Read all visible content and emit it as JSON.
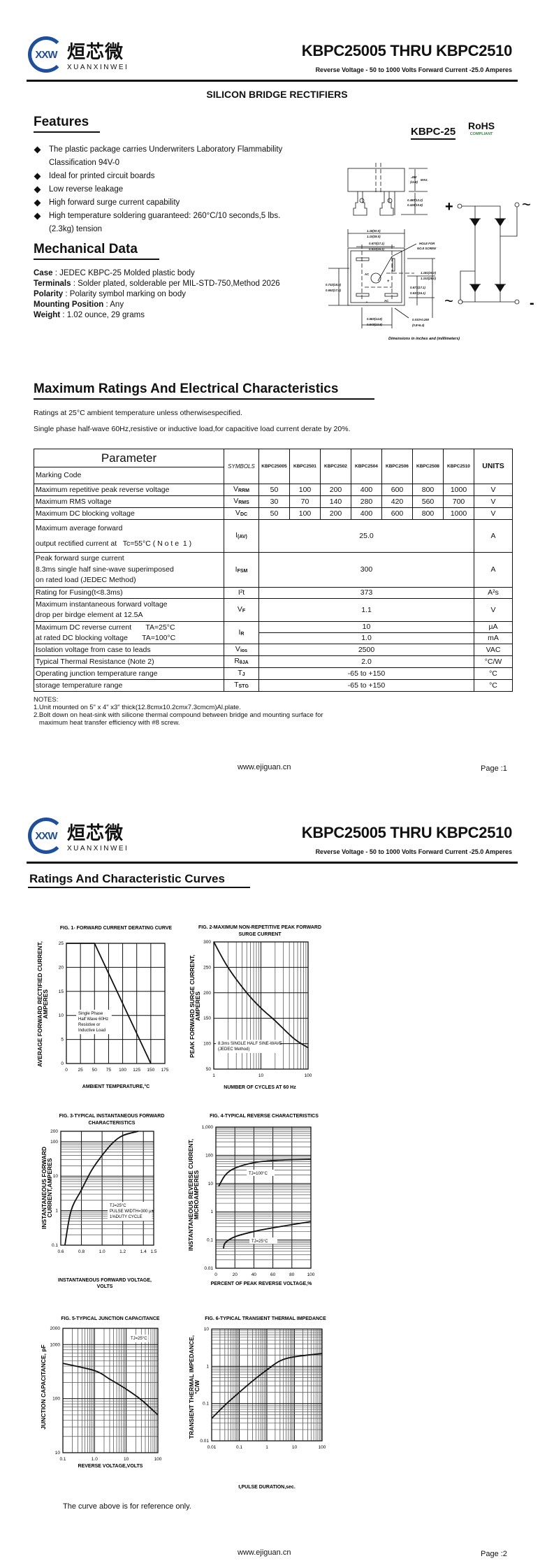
{
  "logo": {
    "mark": "XXW",
    "chinese": "烜芯微",
    "pinyin": "XUANXINWEI",
    "color": "#1d4f9c"
  },
  "header": {
    "title": "KBPC25005 THRU KBPC2510",
    "subtitle": "Reverse Voltage - 50 to 1000 Volts Forward Current -25.0 Amperes"
  },
  "page1": {
    "heading": "SILICON BRIDGE RECTIFIERS",
    "features": {
      "title": "Features",
      "items": [
        "The plastic package carries Underwriters Laboratory Flammability Classification 94V-0",
        "Ideal for printed circuit boards",
        "Low reverse leakage",
        "High forward surge current capability",
        "High temperature soldering guaranteed: 260°C/10 seconds,5 lbs. (2.3kg) tension"
      ]
    },
    "package": {
      "name": "KBPC-25",
      "rohs": "RoHS",
      "rohs_sub": "COMPLIANT",
      "rohs_color": "#2e8b3a",
      "dims": {
        "height": ".452",
        "height_mm": "(11.5)",
        "max": "MAX.",
        "lead1": "0.480(12.2)",
        "lead2": "0.425(10.8)",
        "w1": "1.18(30.0)",
        "w2": "1.10(28.0)",
        "t1": "0.673(17.1)",
        "t2": "0.633(16.1)",
        "hole1": "HOLE FOR",
        "hole2": "NO.8 SCREW",
        "h1": "1.181(30.0)",
        "h2": "1.102(28.0)",
        "r1": "0.673(17.1)",
        "r2": "0.633(16.1)",
        "l1": "0.732(18.6)",
        "l2": "0.692(17.6)",
        "b1": "0.583(14.8)",
        "b2": "0.543(13.8)",
        "p1": "0.033×0.250",
        "p2": "(0.8×6.4)",
        "ac": "AC",
        "plus": "+",
        "minus": "-"
      },
      "caption": "Dimensions in inches and (millimeters)",
      "circuit": {
        "plus": "+",
        "minus": "-",
        "ac": "~"
      }
    },
    "mechanical": {
      "title": "Mechanical Data",
      "items": [
        {
          "label": "Case",
          "text": ": JEDEC KBPC-25 Molded plastic body"
        },
        {
          "label": "Terminals",
          "text": ": Solder plated, solderable per MIL-STD-750,Method 2026"
        },
        {
          "label": "Polarity",
          "text": ": Polarity symbol  marking on body"
        },
        {
          "label": "Mounting Position",
          "text": ": Any"
        },
        {
          "label": "Weight",
          "text": ": 1.02 ounce, 29 grams"
        }
      ]
    },
    "ratings": {
      "title": "Maximum Ratings And Electrical Characteristics",
      "note1": "Ratings at 25°C ambient temperature unless otherwisespecified.",
      "note2": "Single phase half-wave 60Hz,resistive or inductive load,for capacitive load current derate by 20%."
    },
    "table": {
      "param_header": "Parameter",
      "marking": "Marking Code",
      "symbols_header": "SYMBOLS",
      "units_header": "UNITS",
      "models": [
        "KBPC25005",
        "KBPC2501",
        "KBPC2502",
        "KBPC2504",
        "KBPC2506",
        "KBPC2508",
        "KBPC2510"
      ],
      "rows": [
        {
          "param": [
            "Maximum repetitive peak reverse voltage"
          ],
          "sym": "V",
          "sub": "RRM",
          "values": [
            "50",
            "100",
            "200",
            "400",
            "600",
            "800",
            "1000"
          ],
          "unit": "V"
        },
        {
          "param": [
            "Maximum RMS voltage"
          ],
          "sym": "V",
          "sub": "RMS",
          "values": [
            "30",
            "70",
            "140",
            "280",
            "420",
            "560",
            "700"
          ],
          "unit": "V"
        },
        {
          "param": [
            "Maximum DC blocking voltage"
          ],
          "sym": "V",
          "sub": "DC",
          "values": [
            "50",
            "100",
            "200",
            "400",
            "600",
            "800",
            "1000"
          ],
          "unit": "V"
        },
        {
          "param": [
            "Maximum average forward",
            "output rectified current at   Tc=55°C ( N o t e  1 )"
          ],
          "sym": "I",
          "sub": "(AV)",
          "value": "25.0",
          "unit": "A"
        },
        {
          "param": [
            "Peak forward surge current",
            "8.3ms single half sine-wave superimposed",
            "on rated load (JEDEC Method)"
          ],
          "sym": "I",
          "sub": "FSM",
          "value": "300",
          "unit": "A"
        },
        {
          "param": [
            "Rating for Fusing(t<8.3ms)"
          ],
          "sym": "I²t",
          "sub": "",
          "value": "373",
          "unit": "A²s"
        },
        {
          "param": [
            "Maximum instantaneous forward voltage",
            "drop per birdge element at 12.5A"
          ],
          "sym": "V",
          "sub": "F",
          "value": "1.1",
          "unit": "V"
        },
        {
          "param": [
            "Maximum DC reverse current       TA=25°C",
            "at rated DC blocking voltage       TA=100°C"
          ],
          "sym": "I",
          "sub": "R",
          "split": [
            {
              "value": "10",
              "unit": "µA"
            },
            {
              "value": "1.0",
              "unit": "mA"
            }
          ]
        },
        {
          "param": [
            "Isolation voltage from case to leads"
          ],
          "sym": "V",
          "sub": "ios",
          "value": "2500",
          "unit": "VAC"
        },
        {
          "param": [
            "Typical Thermal Resistance (Note 2)"
          ],
          "sym": "R",
          "sub": "θJA",
          "value": "2.0",
          "unit": "°C/W"
        },
        {
          "param": [
            "Operating junction temperature range"
          ],
          "sym": "T",
          "sub": "J",
          "value": "-65 to +150",
          "unit": "°C"
        },
        {
          "param": [
            "storage temperature range"
          ],
          "sym": "T",
          "sub": "STG",
          "value": "-65 to +150",
          "unit": "°C"
        }
      ]
    },
    "notes": [
      "NOTES:",
      "1.Unit mounted on 5\"  x 4\"  x3\"  thick(12.8cmx10.2cmx7.3cmcm)Al.plate.",
      "2.Bolt down on heat-sink with silicone thermal compound between bridge and mounting surface for",
      "   maximum heat transfer efficiency with #8 screw."
    ],
    "footer": {
      "url": "www.ejiguan.cn",
      "page": "Page :1"
    }
  },
  "page2": {
    "heading": "Ratings And Characteristic Curves",
    "reference_note": "The curve above is for reference only.",
    "footer": {
      "url": "www.ejiguan.cn",
      "page": "Page :2"
    }
  },
  "chart_data": [
    {
      "type": "line",
      "title": [
        "FIG. 1- FORWARD CURRENT DERATING CURVE"
      ],
      "xlabel": [
        "AMBIENT TEMPERATURE,°C"
      ],
      "ylabel": [
        "AVERAGE FORWARD RECTIFIED CURRENT,",
        "AMPERES"
      ],
      "xscale": "linear",
      "yscale": "linear",
      "xlim": [
        0,
        175
      ],
      "ylim": [
        0,
        25
      ],
      "xticks": [
        0,
        25,
        50,
        75,
        100,
        125,
        150,
        175
      ],
      "xtick_labels": [
        "0",
        "25",
        "50",
        "75",
        "100",
        "125",
        "150",
        "175"
      ],
      "yticks": [
        0,
        5,
        10,
        15,
        20,
        25
      ],
      "ytick_labels": [
        "0",
        "5",
        "10",
        "15",
        "20",
        "25"
      ],
      "grid": true,
      "series": [
        {
          "x": [
            0,
            50,
            150
          ],
          "y": [
            25,
            25,
            0
          ]
        }
      ],
      "annotations": [
        {
          "text": [
            "Single Phase",
            "Half Wave 60Hz",
            "Resistive or",
            "Inductive Load"
          ]
        }
      ]
    },
    {
      "type": "line",
      "title": [
        "FIG. 2-MAXIMUM NON-REPETITIVE PEAK FORWARD",
        "SURGE CURRENT"
      ],
      "xlabel": [
        "NUMBER OF CYCLES AT 60 Hz"
      ],
      "ylabel": [
        "PEAK  FORWARD SURGE CURRENT,",
        "AMPERES"
      ],
      "xscale": "log",
      "yscale": "linear",
      "xlim": [
        1,
        100
      ],
      "ylim": [
        50,
        300
      ],
      "xticks": [
        1,
        10,
        100
      ],
      "xtick_labels": [
        "1",
        "10",
        "100"
      ],
      "yticks": [
        50,
        100,
        150,
        200,
        250,
        300
      ],
      "ytick_labels": [
        "50",
        "100",
        "150",
        "200",
        "250",
        "300"
      ],
      "grid": true,
      "series": [
        {
          "x": [
            1,
            2,
            5,
            10,
            20,
            50,
            100
          ],
          "y": [
            300,
            250,
            200,
            170,
            145,
            110,
            92
          ]
        }
      ],
      "annotations": [
        {
          "text": [
            "8.3ms SINGLE HALF SINE-WAVE",
            "(JEDEC Method)"
          ]
        }
      ]
    },
    {
      "type": "line",
      "title": [
        "FIG. 3-TYPICAL INSTANTANEOUS FORWARD",
        "CHARACTERISTICS"
      ],
      "xlabel": [
        "INSTANTANEOUS FORWARD VOLTAGE,",
        "VOLTS"
      ],
      "ylabel": [
        "INSTANTANEOUS FORWARD",
        "CURRENT,AMPERES"
      ],
      "xscale": "linear",
      "yscale": "log",
      "xlim": [
        0.6,
        1.5
      ],
      "ylim": [
        0.1,
        200
      ],
      "xticks": [
        0.6,
        0.8,
        1.0,
        1.2,
        1.4,
        1.5
      ],
      "xtick_labels": [
        "0.6",
        "0.8",
        "1.0",
        "1.2",
        "1.4",
        "1.5"
      ],
      "yticks": [
        0.1,
        1,
        10,
        100,
        200
      ],
      "ytick_labels": [
        "0.1",
        "1",
        "10",
        "100",
        "200"
      ],
      "grid": true,
      "series": [
        {
          "x": [
            0.64,
            0.7,
            0.8,
            0.9,
            1.0,
            1.1,
            1.2,
            1.35
          ],
          "y": [
            0.1,
            1,
            4,
            15,
            40,
            90,
            150,
            200
          ]
        }
      ],
      "annotations": [
        {
          "text": [
            "TJ=25°C",
            "PULSE WIDTH=300 µs",
            "1%DUTY CYCLE"
          ]
        }
      ]
    },
    {
      "type": "line",
      "title": [
        "FIG. 4-TYPICAL REVERSE CHARACTERISTICS"
      ],
      "xlabel": [
        "PERCENT OF PEAK REVERSE VOLTAGE,%"
      ],
      "ylabel": [
        "INSTANTANEOUS REVERSE CURRENT,",
        "MICROAMPERES"
      ],
      "xscale": "linear",
      "yscale": "log",
      "xlim": [
        0,
        100
      ],
      "ylim": [
        0.01,
        1000
      ],
      "xticks": [
        0,
        20,
        40,
        60,
        80,
        100
      ],
      "xtick_labels": [
        "0",
        "20",
        "40",
        "60",
        "80",
        "100"
      ],
      "yticks": [
        0.01,
        0.1,
        1,
        10,
        100,
        1000
      ],
      "ytick_labels": [
        "0.01",
        "0.1",
        "1",
        "10",
        "100",
        "1,000"
      ],
      "grid": true,
      "series": [
        {
          "name": "TJ=100°C",
          "x": [
            3,
            10,
            20,
            40,
            60,
            80,
            100
          ],
          "y": [
            8,
            20,
            35,
            55,
            65,
            70,
            72
          ]
        },
        {
          "name": "TJ=25°C",
          "x": [
            8,
            10,
            20,
            40,
            60,
            80,
            100
          ],
          "y": [
            0.05,
            0.08,
            0.13,
            0.2,
            0.27,
            0.35,
            0.45
          ]
        }
      ],
      "annotations": []
    },
    {
      "type": "line",
      "title": [
        "FIG. 5-TYPICAL JUNCTION CAPACITANCE"
      ],
      "xlabel": [
        "REVERSE VOLTAGE,VOLTS"
      ],
      "ylabel": [
        "JUNCTION CAPACITANCE, pF"
      ],
      "xscale": "log",
      "yscale": "log",
      "xlim": [
        0.1,
        100
      ],
      "ylim": [
        10,
        2000
      ],
      "xticks": [
        0.1,
        1,
        10,
        100
      ],
      "xtick_labels": [
        "0.1",
        "1.0",
        "10",
        "100"
      ],
      "yticks": [
        10,
        100,
        1000,
        2000
      ],
      "ytick_labels": [
        "10",
        "100",
        "1000",
        "2000"
      ],
      "grid": true,
      "series": [
        {
          "x": [
            0.1,
            1,
            3,
            10,
            30,
            100
          ],
          "y": [
            450,
            330,
            230,
            150,
            95,
            50
          ]
        }
      ],
      "annotations": [
        {
          "text": [
            "TJ=25°C"
          ]
        }
      ]
    },
    {
      "type": "line",
      "title": [
        "FIG. 6-TYPICAL TRANSIENT THERMAL IMPEDANCE"
      ],
      "xlabel": [
        "t,PULSE DURATION,sec."
      ],
      "ylabel": [
        "TRANSIENT THERMAL IMPEDANCE,",
        "°C/W"
      ],
      "xscale": "log",
      "yscale": "log",
      "xlim": [
        0.01,
        100
      ],
      "ylim": [
        0.01,
        10
      ],
      "xticks": [
        0.01,
        0.1,
        1,
        10,
        100
      ],
      "xtick_labels": [
        "0.01",
        "0.1",
        "1",
        "10",
        "100"
      ],
      "yticks": [
        0.01,
        0.1,
        1,
        10
      ],
      "ytick_labels": [
        "0.01",
        "0.1",
        "1",
        "10"
      ],
      "grid": true,
      "series": [
        {
          "x": [
            0.01,
            0.03,
            0.1,
            0.3,
            1,
            3,
            10,
            100
          ],
          "y": [
            0.04,
            0.09,
            0.2,
            0.4,
            0.8,
            1.4,
            1.8,
            2.2
          ]
        }
      ],
      "annotations": []
    }
  ]
}
